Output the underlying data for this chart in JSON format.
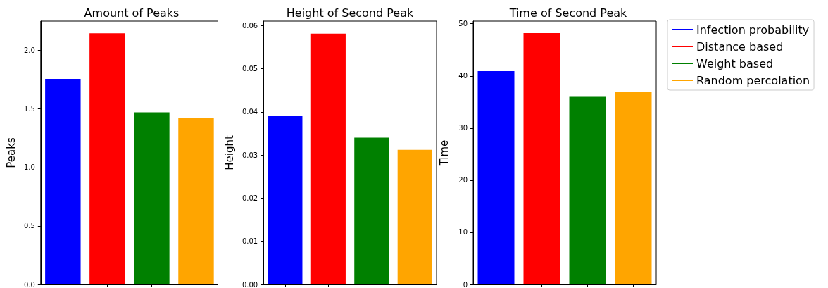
{
  "chart_data": [
    {
      "type": "bar",
      "title": "Amount of Peaks",
      "ylabel": "Peaks",
      "categories": [
        null,
        null,
        null,
        null
      ],
      "values": [
        1.756,
        2.146,
        1.471,
        1.423
      ],
      "colors": [
        "#0000ff",
        "#ff0000",
        "#008000",
        "#ffa500"
      ],
      "ylim": [
        0,
        2.25
      ],
      "yticks": [
        {
          "value": 0,
          "label": "0.0"
        },
        0.5,
        {
          "value": 1,
          "label": "1.0"
        },
        1.5,
        {
          "value": 2,
          "label": "2.0"
        }
      ],
      "tick_labels": "y"
    },
    {
      "type": "bar",
      "title": "Height of Second Peak",
      "ylabel": "Height",
      "categories": [
        null,
        null,
        null,
        null
      ],
      "values": [
        0.039,
        0.0581,
        0.034,
        0.0312
      ],
      "colors": [
        "#0000ff",
        "#ff0000",
        "#008000",
        "#ffa500"
      ],
      "ylim": [
        0,
        0.061
      ],
      "yticks": [
        {
          "value": 0,
          "label": "0.00"
        },
        0.01,
        0.02,
        0.03,
        0.04,
        0.05,
        0.06
      ],
      "tick_labels": "y"
    },
    {
      "type": "bar",
      "title": "Time of Second Peak",
      "ylabel": "Time",
      "categories": [
        null,
        null,
        null,
        null
      ],
      "legend": "right",
      "series": [
        {
          "name": "Infection probability",
          "color": "#0000ff",
          "values": [
            40.9,
            null,
            null,
            null
          ]
        },
        {
          "name": "Distance based",
          "color": "#ff0000",
          "values": [
            null,
            48.2,
            null,
            null
          ]
        },
        {
          "name": "Weight based",
          "color": "#008000",
          "values": [
            null,
            null,
            36.0,
            null
          ]
        },
        {
          "name": "Random percolation",
          "color": "#ffa500",
          "values": [
            null,
            null,
            null,
            36.9
          ]
        }
      ],
      "ylim": [
        0,
        50.5
      ],
      "yticks": [
        0,
        10,
        20,
        30,
        40,
        50
      ],
      "tick_labels": "y"
    }
  ]
}
